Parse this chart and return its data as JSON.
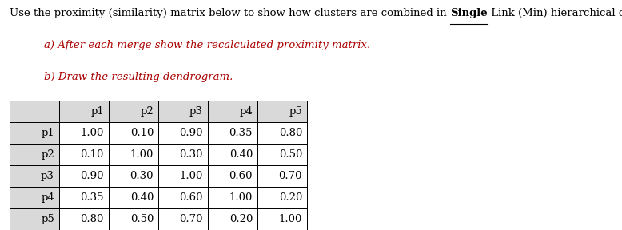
{
  "title_prefix": "Use the proximity (similarity) matrix below to show how clusters are combined in ",
  "title_bold": "Single",
  "title_suffix": " Link (Min) hierarchical clustering.",
  "subtitle_a": "a) After each merge show the recalculated proximity matrix.",
  "subtitle_b": "b) Draw the resulting dendrogram.",
  "col_headers": [
    "",
    "p1",
    "p2",
    "p3",
    "p4",
    "p5"
  ],
  "row_headers": [
    "p1",
    "p2",
    "p3",
    "p4",
    "p5"
  ],
  "matrix": [
    [
      1.0,
      0.1,
      0.9,
      0.35,
      0.8
    ],
    [
      0.1,
      1.0,
      0.3,
      0.4,
      0.5
    ],
    [
      0.9,
      0.3,
      1.0,
      0.6,
      0.7
    ],
    [
      0.35,
      0.4,
      0.6,
      1.0,
      0.2
    ],
    [
      0.8,
      0.5,
      0.7,
      0.2,
      1.0
    ]
  ],
  "header_bg": "#d9d9d9",
  "cell_bg": "#ffffff",
  "border_color": "#000000",
  "text_color": "#000000",
  "title_color": "#000000",
  "subtitle_color": "#aa0000",
  "background_color": "#ffffff",
  "title_fontsize": 9.5,
  "subtitle_fontsize": 9.5,
  "cell_fontsize": 9.5,
  "fig_width": 7.78,
  "fig_height": 2.88,
  "dpi": 100
}
